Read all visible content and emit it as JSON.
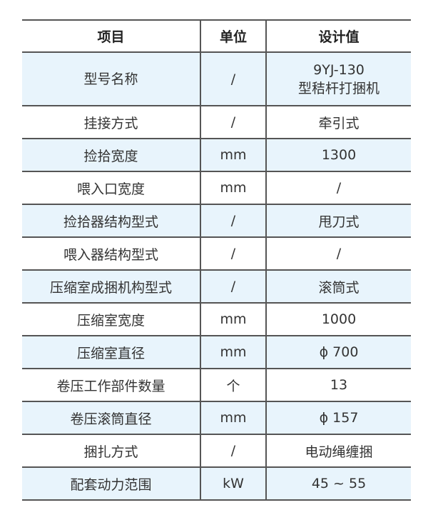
{
  "table": {
    "headers": [
      "项目",
      "单位",
      "设计值"
    ],
    "rows": [
      {
        "item": "型号名称",
        "unit": "/",
        "value": "9YJ-130",
        "value2": "型秸杆打捆机"
      },
      {
        "item": "挂接方式",
        "unit": "/",
        "value": "牵引式"
      },
      {
        "item": "捡拾宽度",
        "unit": "mm",
        "value": "1300"
      },
      {
        "item": "喂入口宽度",
        "unit": "mm",
        "value": "/"
      },
      {
        "item": "捡拾器结构型式",
        "unit": "/",
        "value": "甩刀式"
      },
      {
        "item": "喂入器结构型式",
        "unit": "/",
        "value": "/"
      },
      {
        "item": "压缩室成捆机构型式",
        "unit": "/",
        "value": "滚筒式"
      },
      {
        "item": "压缩室宽度",
        "unit": "mm",
        "value": "1000"
      },
      {
        "item": "压缩室直径",
        "unit": "mm",
        "value": "ϕ 700"
      },
      {
        "item": "卷压工作部件数量",
        "unit": "个",
        "value": "13"
      },
      {
        "item": "卷压滚筒直径",
        "unit": "mm",
        "value": "ϕ 157"
      },
      {
        "item": "捆扎方式",
        "unit": "/",
        "value": "电动绳缠捆"
      },
      {
        "item": "配套动力范围",
        "unit": "kW",
        "value": "45 ~ 55"
      }
    ],
    "row_highlight_color": "#e8f4fc"
  }
}
